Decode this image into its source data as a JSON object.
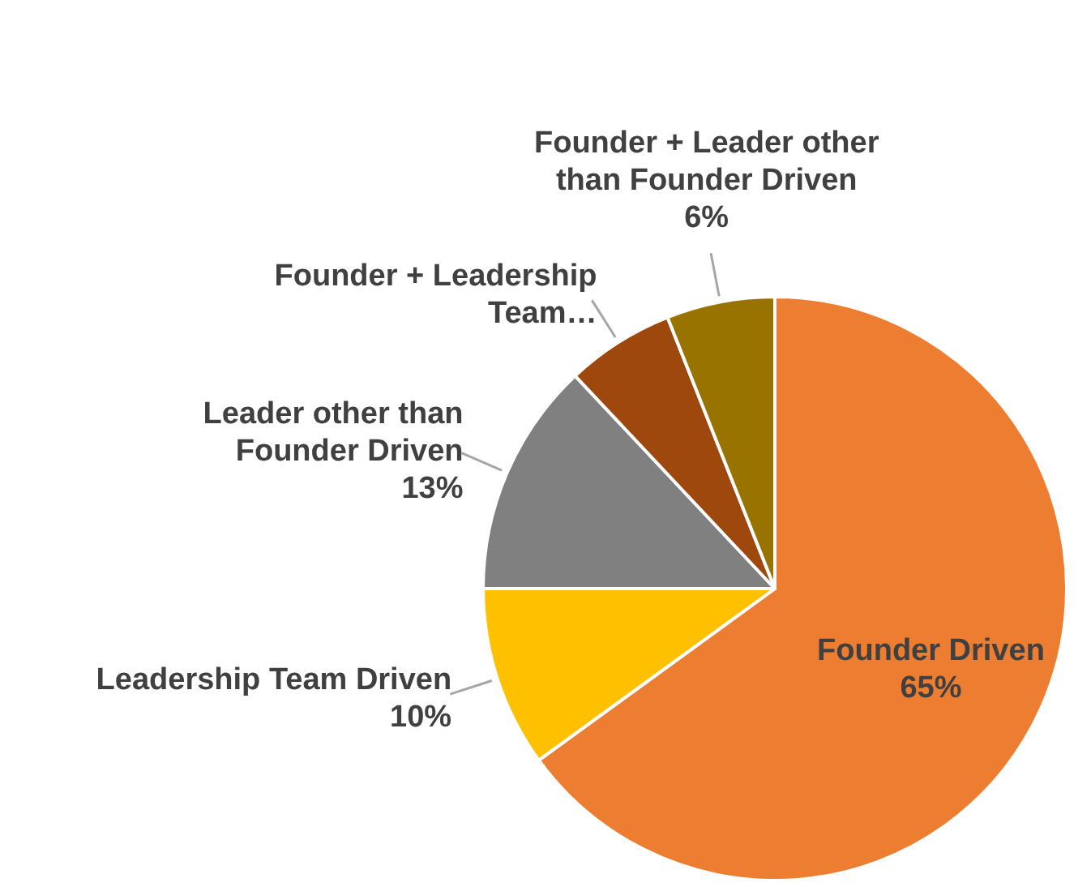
{
  "chart_data": {
    "type": "pie",
    "categories": [
      "Founder Driven",
      "Leadership Team Driven",
      "Leader other than Founder Driven",
      "Founder + Leadership Team…",
      "Founder + Leader other than Founder Driven"
    ],
    "values": [
      65,
      10,
      13,
      6,
      6
    ],
    "value_labels": [
      "65%",
      "10%",
      "13%",
      null,
      "6%"
    ],
    "colors": [
      "#ed7d31",
      "#ffc000",
      "#808080",
      "#9e480e",
      "#997300"
    ]
  }
}
